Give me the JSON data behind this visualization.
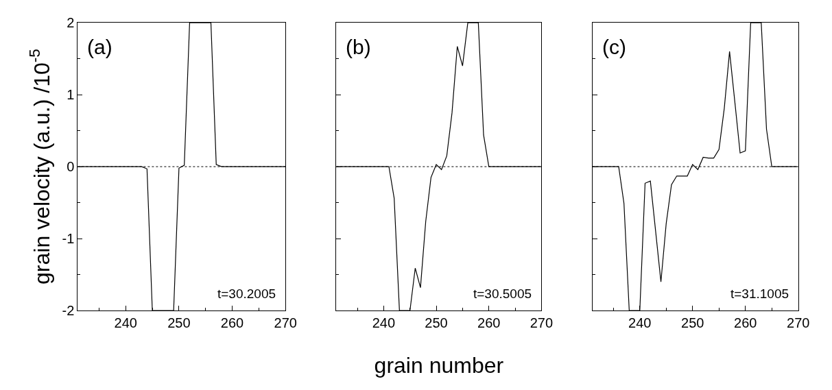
{
  "chart_data": [
    {
      "type": "line",
      "ylabel": "grain velocity (a.u.) /10$^{-5}$",
      "annotations": [
        "(a)",
        "t=30.2005"
      ],
      "x": [
        231,
        232,
        233,
        234,
        235,
        236,
        237,
        238,
        239,
        240,
        241,
        242,
        243,
        244,
        245,
        246,
        247,
        248,
        249,
        250,
        251,
        252,
        253,
        254,
        255,
        256,
        257,
        258,
        259,
        260,
        261,
        262,
        263,
        264,
        265,
        266,
        267,
        268,
        269,
        270
      ],
      "series": [
        {
          "color": "#000000",
          "values": [
            0,
            0,
            0,
            0,
            0,
            0,
            0,
            0,
            0,
            0,
            0,
            0,
            0,
            -0.03,
            -2,
            -2,
            -2,
            -2,
            -2,
            -0.02,
            0.02,
            2,
            2,
            2,
            2,
            2,
            0.03,
            0,
            0,
            0,
            0,
            0,
            0,
            0,
            0,
            0,
            0,
            0,
            0,
            0
          ]
        }
      ],
      "xlim": [
        231,
        270
      ],
      "xticks": [
        {
          "value": 235,
          "label": null
        },
        240,
        {
          "value": 245,
          "label": null
        },
        250,
        {
          "value": 255,
          "label": null
        },
        260,
        {
          "value": 265,
          "label": null
        },
        270
      ],
      "ylim": [
        -2,
        2
      ],
      "yticks": [
        -2,
        {
          "value": -1.5,
          "label": null
        },
        -1,
        {
          "value": -0.5,
          "label": null
        },
        0,
        {
          "value": 0.5,
          "label": null
        },
        1,
        {
          "value": 1.5,
          "label": null
        },
        2
      ],
      "ref_lines": [
        {
          "axis": "y",
          "value": 0,
          "color": "#000000",
          "line_style": "dotted"
        }
      ],
      "line_style": "solid",
      "marker": "none",
      "grid": false
    },
    {
      "type": "line",
      "xlabel": "grain number",
      "annotations": [
        "(b)",
        "t=30.5005"
      ],
      "x": [
        231,
        232,
        233,
        234,
        235,
        236,
        237,
        238,
        239,
        240,
        241,
        242,
        243,
        244,
        245,
        246,
        247,
        248,
        249,
        250,
        251,
        252,
        253,
        254,
        255,
        256,
        257,
        258,
        259,
        260,
        261,
        262,
        263,
        264,
        265,
        266,
        267,
        268,
        269,
        270
      ],
      "series": [
        {
          "color": "#000000",
          "values": [
            0,
            0,
            0,
            0,
            0,
            0,
            0,
            0,
            0,
            0,
            0,
            -0.44,
            -2,
            -2,
            -2,
            -1.41,
            -1.68,
            -0.76,
            -0.15,
            0.03,
            -0.04,
            0.15,
            0.75,
            1.67,
            1.4,
            2,
            2,
            2,
            0.44,
            0,
            0,
            0,
            0,
            0,
            0,
            0,
            0,
            0,
            0,
            0
          ]
        }
      ],
      "xlim": [
        231,
        270
      ],
      "xticks": [
        {
          "value": 235,
          "label": null
        },
        240,
        {
          "value": 245,
          "label": null
        },
        250,
        {
          "value": 255,
          "label": null
        },
        260,
        {
          "value": 265,
          "label": null
        },
        270
      ],
      "ylim": [
        -2,
        2
      ],
      "yticks": [
        -2,
        {
          "value": -1.5,
          "label": null
        },
        -1,
        {
          "value": -0.5,
          "label": null
        },
        0,
        {
          "value": 0.5,
          "label": null
        },
        1,
        {
          "value": 1.5,
          "label": null
        },
        2
      ],
      "tick_labels": "x",
      "ref_lines": [
        {
          "axis": "y",
          "value": 0,
          "color": "#000000",
          "line_style": "dotted"
        }
      ],
      "line_style": "solid",
      "marker": "none",
      "grid": false
    },
    {
      "type": "line",
      "annotations": [
        "(c)",
        "t=31.1005"
      ],
      "x": [
        231,
        232,
        233,
        234,
        235,
        236,
        237,
        238,
        239,
        240,
        241,
        242,
        243,
        244,
        245,
        246,
        247,
        248,
        249,
        250,
        251,
        252,
        253,
        254,
        255,
        256,
        257,
        258,
        259,
        260,
        261,
        262,
        263,
        264,
        265,
        266,
        267,
        268,
        269,
        270
      ],
      "series": [
        {
          "color": "#000000",
          "values": [
            0,
            0,
            0,
            0,
            0,
            0,
            -0.51,
            -2,
            -2,
            -2,
            -0.23,
            -0.2,
            -0.9,
            -1.6,
            -0.79,
            -0.25,
            -0.13,
            -0.13,
            -0.13,
            0.03,
            -0.04,
            0.13,
            0.12,
            0.12,
            0.24,
            0.81,
            1.6,
            0.9,
            0.19,
            0.22,
            2,
            2,
            2,
            0.52,
            0,
            0,
            0,
            0,
            0,
            0
          ]
        }
      ],
      "xlim": [
        231,
        270
      ],
      "xticks": [
        {
          "value": 235,
          "label": null
        },
        240,
        {
          "value": 245,
          "label": null
        },
        250,
        {
          "value": 255,
          "label": null
        },
        260,
        {
          "value": 265,
          "label": null
        },
        270
      ],
      "ylim": [
        -2,
        2
      ],
      "yticks": [
        -2,
        {
          "value": -1.5,
          "label": null
        },
        -1,
        {
          "value": -0.5,
          "label": null
        },
        0,
        {
          "value": 0.5,
          "label": null
        },
        1,
        {
          "value": 1.5,
          "label": null
        },
        2
      ],
      "tick_labels": "x",
      "ref_lines": [
        {
          "axis": "y",
          "value": 0,
          "color": "#000000",
          "line_style": "dotted"
        }
      ],
      "line_style": "solid",
      "marker": "none",
      "grid": false
    }
  ]
}
